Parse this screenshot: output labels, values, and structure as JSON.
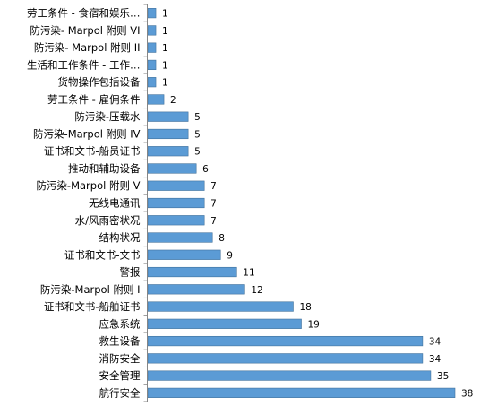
{
  "chart_data": {
    "type": "bar",
    "orientation": "horizontal",
    "title": "",
    "xlabel": "",
    "ylabel": "",
    "grid": false,
    "legend": "none",
    "bar_color": "#5b9bd5",
    "bar_edge_color": "#41719c",
    "xlim": [
      0,
      38
    ],
    "categories": [
      "劳工条件 - 食宿和娱乐…",
      "防污染- Marpol 附则 VI",
      "防污染- Marpol 附则 II",
      "生活和工作条件 - 工作…",
      "货物操作包括设备",
      "劳工条件 - 雇佣条件",
      "防污染-压载水",
      "防污染-Marpol 附则 IV",
      "证书和文书-船员证书",
      "推动和辅助设备",
      "防污染-Marpol 附则 V",
      "无线电通讯",
      "水/风雨密状况",
      "结构状况",
      "证书和文书-文书",
      "警报",
      "防污染-Marpol 附则 I",
      "证书和文书-船舶证书",
      "应急系统",
      "救生设备",
      "消防安全",
      "安全管理",
      "航行安全"
    ],
    "values": [
      1,
      1,
      1,
      1,
      1,
      2,
      5,
      5,
      5,
      6,
      7,
      7,
      7,
      8,
      9,
      11,
      12,
      18,
      19,
      34,
      34,
      35,
      38
    ]
  }
}
